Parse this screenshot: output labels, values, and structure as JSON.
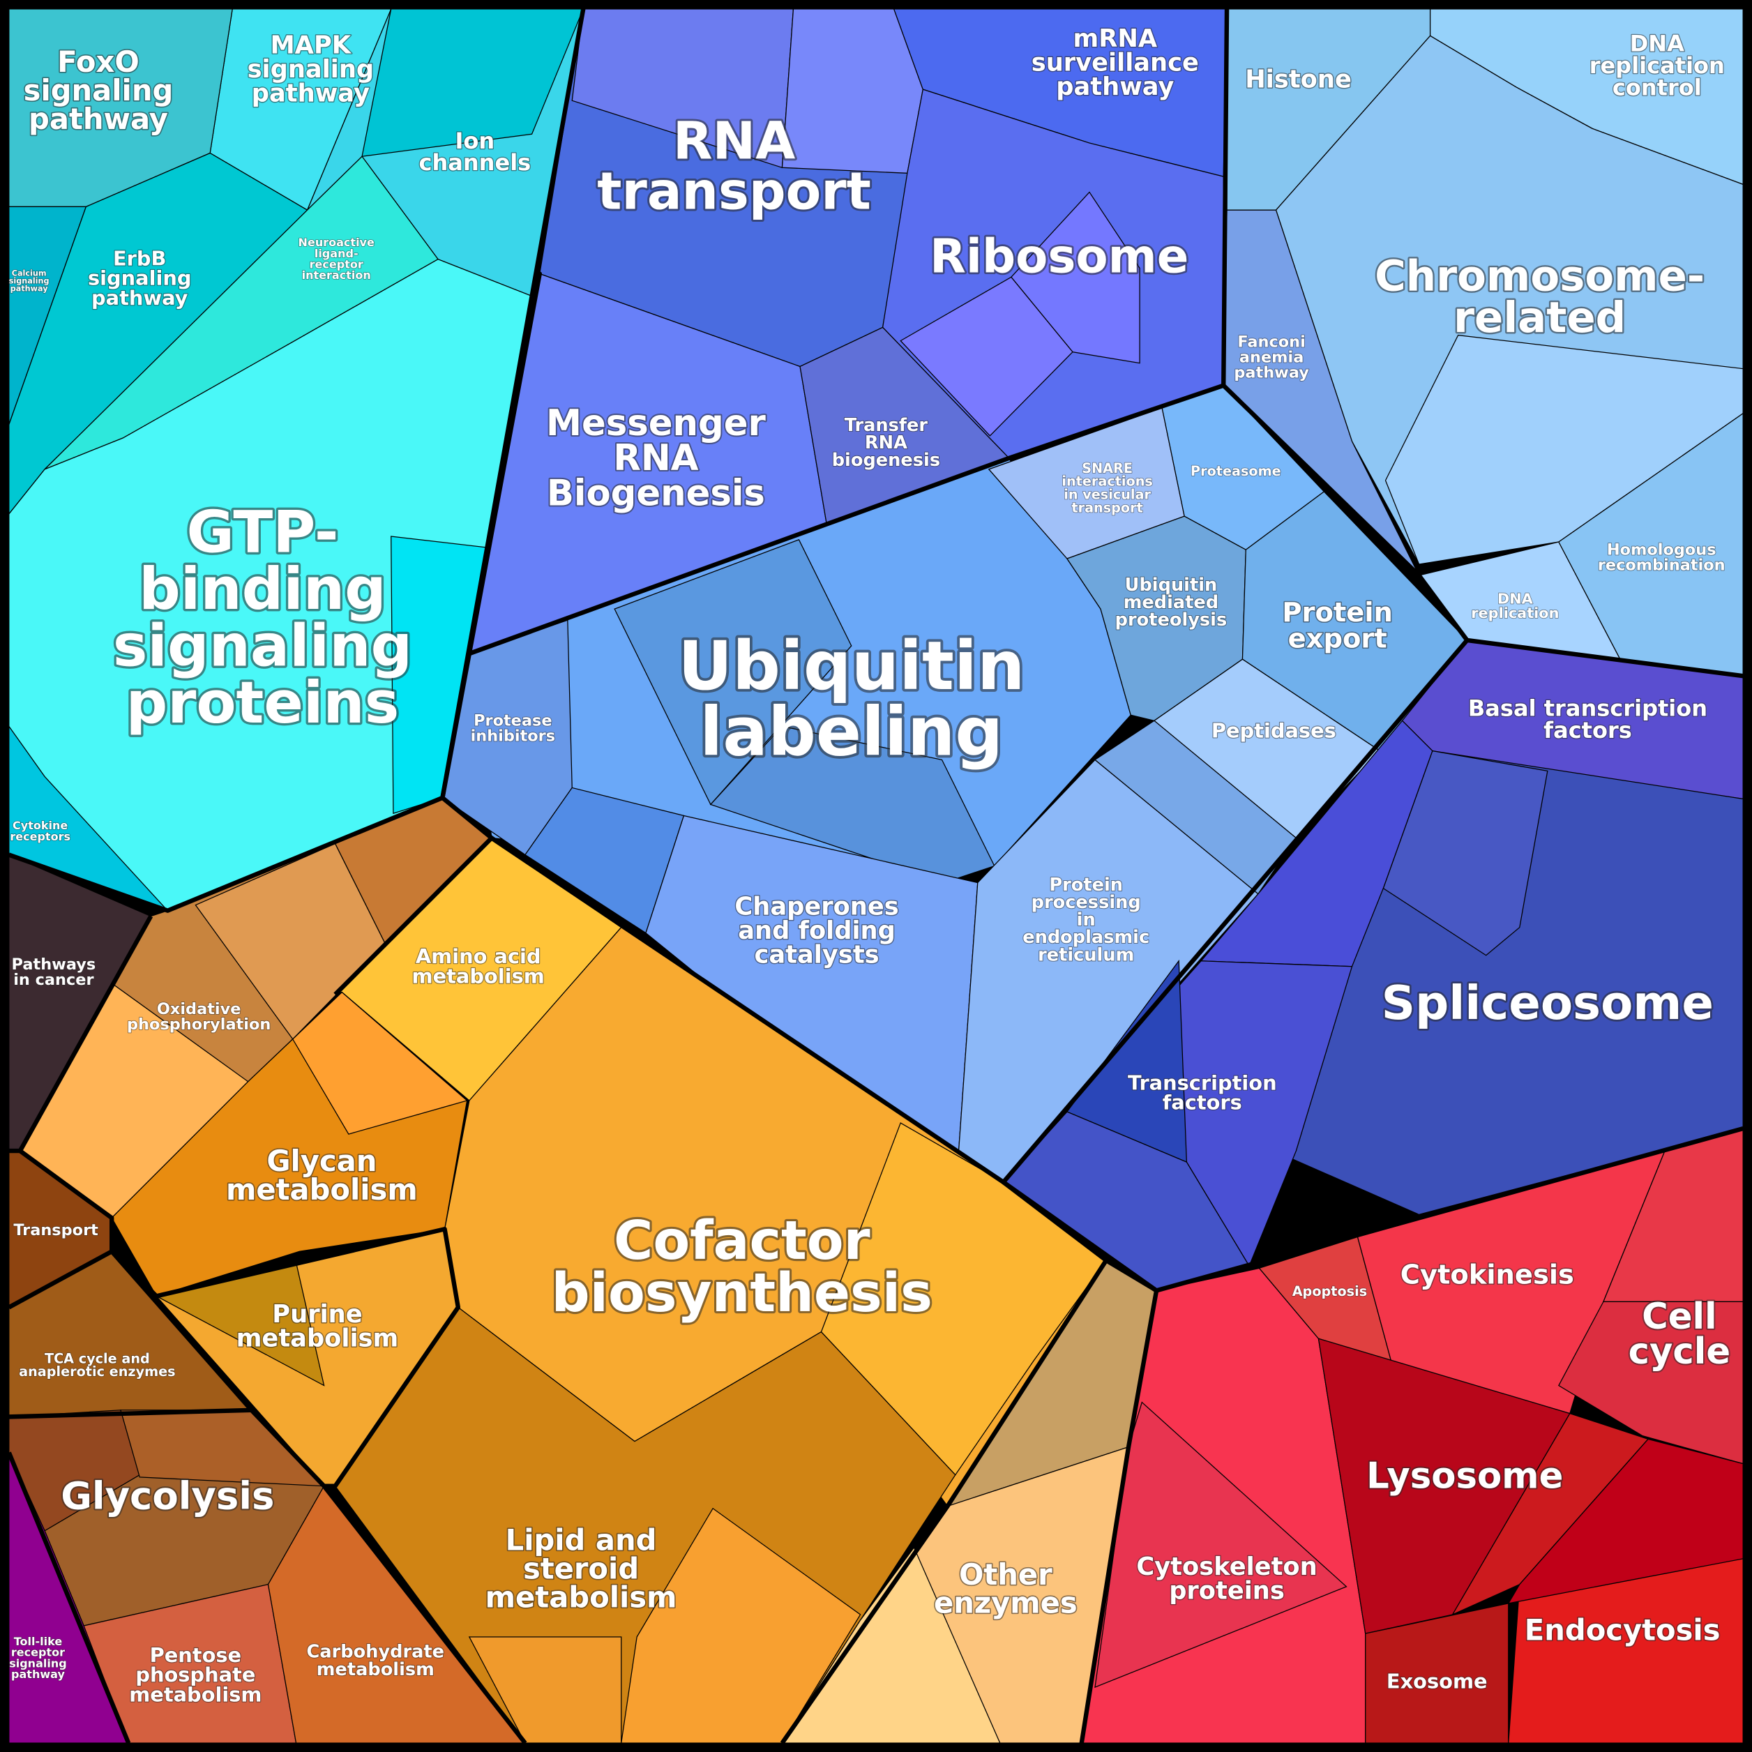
{
  "nodes": [
    {
      "label": [
        "FoxO",
        "signaling",
        "pathway"
      ]
    },
    {
      "label": [
        "MAPK",
        "signaling",
        "pathway"
      ]
    },
    {
      "label": [
        "Ion",
        "channels"
      ]
    },
    {
      "label": [
        "Calcium",
        "signaling",
        "pathway"
      ]
    },
    {
      "label": [
        "ErbB",
        "signaling",
        "pathway"
      ]
    },
    {
      "label": [
        "Neuroactive",
        "ligand-",
        "receptor",
        "interaction"
      ]
    },
    {
      "label": [
        "GTP-",
        "binding",
        "signaling",
        "proteins"
      ]
    },
    {
      "label": [
        "Cytokine",
        "receptors"
      ]
    },
    {
      "label": [
        "RNA",
        "transport"
      ]
    },
    {
      "label": [
        "mRNA",
        "surveillance",
        "pathway"
      ]
    },
    {
      "label": [
        "Ribosome"
      ]
    },
    {
      "label": [
        "Messenger",
        "RNA",
        "Biogenesis"
      ]
    },
    {
      "label": [
        "Transfer",
        "RNA",
        "biogenesis"
      ]
    },
    {
      "label": [
        "Histone"
      ]
    },
    {
      "label": [
        "DNA",
        "replication",
        "control"
      ]
    },
    {
      "label": [
        "Chromosome-",
        "related"
      ]
    },
    {
      "label": [
        "Fanconi",
        "anemia",
        "pathway"
      ]
    },
    {
      "label": [
        "SNARE",
        "interactions",
        "in vesicular",
        "transport"
      ]
    },
    {
      "label": [
        "Proteasome"
      ]
    },
    {
      "label": [
        "Ubiquitin",
        "mediated",
        "proteolysis"
      ]
    },
    {
      "label": [
        "Protein",
        "export"
      ]
    },
    {
      "label": [
        "Ubiquitin",
        "labeling"
      ]
    },
    {
      "label": [
        "DNA",
        "replication"
      ]
    },
    {
      "label": [
        "Homologous",
        "recombination"
      ]
    },
    {
      "label": [
        "Protease",
        "inhibitors"
      ]
    },
    {
      "label": [
        "Peptidases"
      ]
    },
    {
      "label": [
        "Basal transcription",
        "factors"
      ]
    },
    {
      "label": [
        "Chaperones",
        "and folding",
        "catalysts"
      ]
    },
    {
      "label": [
        "Protein",
        "processing",
        "in",
        "endoplasmic",
        "reticulum"
      ]
    },
    {
      "label": [
        "Spliceosome"
      ]
    },
    {
      "label": [
        "Pathways",
        "in cancer"
      ]
    },
    {
      "label": [
        "Oxidative",
        "phosphorylation"
      ]
    },
    {
      "label": [
        "Amino acid",
        "metabolism"
      ]
    },
    {
      "label": [
        "Glycan",
        "metabolism"
      ]
    },
    {
      "label": [
        "Transcription",
        "factors"
      ]
    },
    {
      "label": [
        "Transport"
      ]
    },
    {
      "label": [
        "Cofactor",
        "biosynthesis"
      ]
    },
    {
      "label": [
        "Apoptosis"
      ]
    },
    {
      "label": [
        "Cytokinesis"
      ]
    },
    {
      "label": [
        "Cell",
        "cycle"
      ]
    },
    {
      "label": [
        "Purine",
        "metabolism"
      ]
    },
    {
      "label": [
        "TCA cycle and",
        "anaplerotic enzymes"
      ]
    },
    {
      "label": [
        "Glycolysis"
      ]
    },
    {
      "label": [
        "Lysosome"
      ]
    },
    {
      "label": [
        "Lipid and",
        "steroid",
        "metabolism"
      ]
    },
    {
      "label": [
        "Other",
        "enzymes"
      ]
    },
    {
      "label": [
        "Cytoskeleton",
        "proteins"
      ]
    },
    {
      "label": [
        "Toll-like",
        "receptor",
        "signaling",
        "pathway"
      ]
    },
    {
      "label": [
        "Pentose",
        "phosphate",
        "metabolism"
      ]
    },
    {
      "label": [
        "Carbohydrate",
        "metabolism"
      ]
    },
    {
      "label": [
        "Endocytosis"
      ]
    },
    {
      "label": [
        "Exosome"
      ]
    }
  ]
}
